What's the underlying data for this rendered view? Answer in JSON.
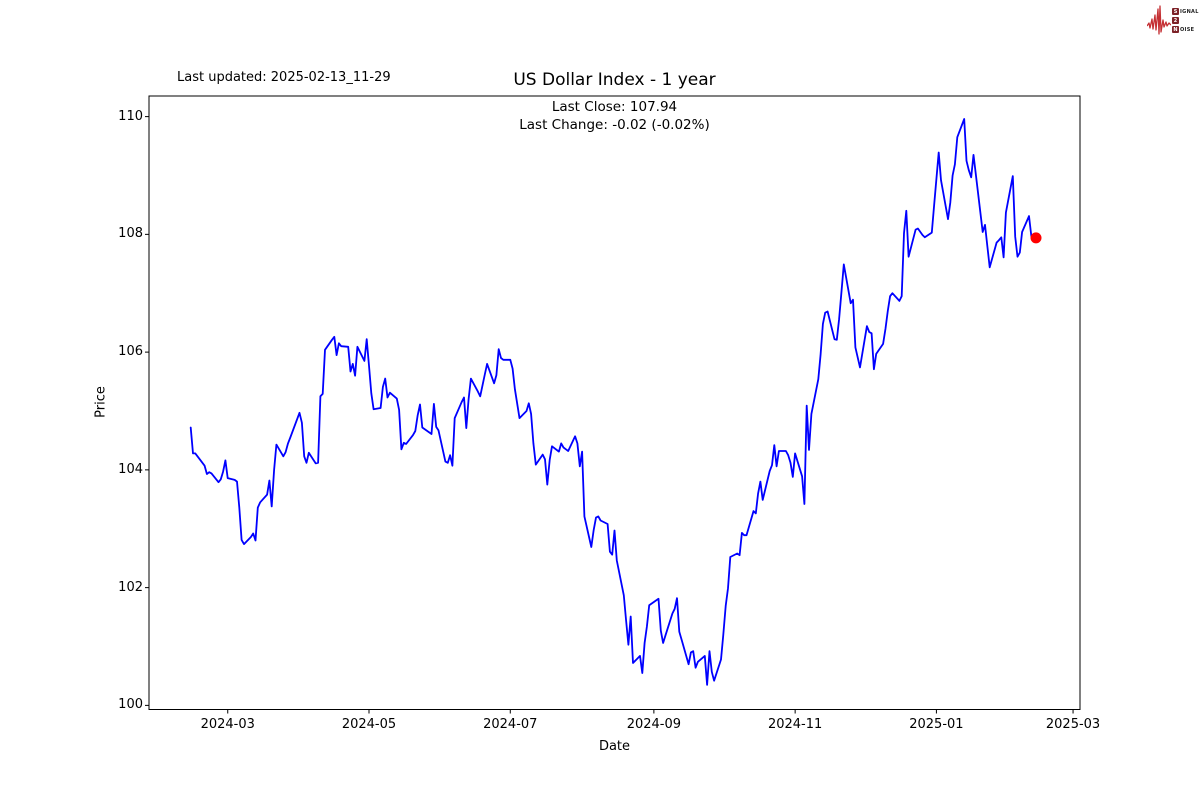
{
  "header": {
    "last_updated": "Last updated: 2025-02-13_11-29"
  },
  "logo": {
    "signal_boxed": "S",
    "signal_rest": "IGNAL",
    "two_boxed": "2",
    "noise_boxed": "N",
    "noise_rest": "OISE",
    "waveform_color": "#c53034",
    "box_color": "#7d2228"
  },
  "chart_data": {
    "type": "line",
    "title": "US Dollar Index - 1 year",
    "subtitle_line1": "Last Close: 107.94",
    "subtitle_line2": "Last Change: -0.02 (-0.02%)",
    "xlabel": "Date",
    "ylabel": "Price",
    "x_tick_labels": [
      "2024-03",
      "2024-05",
      "2024-07",
      "2024-09",
      "2024-11",
      "2025-01",
      "2025-03"
    ],
    "y_ticks": [
      100,
      102,
      104,
      106,
      108,
      110
    ],
    "ylim": [
      99.93,
      110.35
    ],
    "x_domain": [
      "2024-01-27",
      "2025-03-04"
    ],
    "grid": false,
    "line_color": "#0000ff",
    "marker_color": "#ff0000",
    "last_point": {
      "date": "2025-02-13",
      "value": 107.94
    },
    "series": [
      {
        "name": "US Dollar Index",
        "points": [
          [
            "2024-02-14",
            104.72
          ],
          [
            "2024-02-15",
            104.28
          ],
          [
            "2024-02-16",
            104.28
          ],
          [
            "2024-02-20",
            104.07
          ],
          [
            "2024-02-21",
            103.93
          ],
          [
            "2024-02-22",
            103.96
          ],
          [
            "2024-02-23",
            103.94
          ],
          [
            "2024-02-26",
            103.79
          ],
          [
            "2024-02-27",
            103.84
          ],
          [
            "2024-02-28",
            103.97
          ],
          [
            "2024-02-29",
            104.16
          ],
          [
            "2024-03-01",
            103.86
          ],
          [
            "2024-03-04",
            103.83
          ],
          [
            "2024-03-05",
            103.8
          ],
          [
            "2024-03-06",
            103.36
          ],
          [
            "2024-03-07",
            102.81
          ],
          [
            "2024-03-08",
            102.74
          ],
          [
            "2024-03-11",
            102.86
          ],
          [
            "2024-03-12",
            102.92
          ],
          [
            "2024-03-13",
            102.8
          ],
          [
            "2024-03-14",
            103.36
          ],
          [
            "2024-03-15",
            103.45
          ],
          [
            "2024-03-18",
            103.58
          ],
          [
            "2024-03-19",
            103.82
          ],
          [
            "2024-03-20",
            103.38
          ],
          [
            "2024-03-21",
            104.0
          ],
          [
            "2024-03-22",
            104.43
          ],
          [
            "2024-03-25",
            104.23
          ],
          [
            "2024-03-26",
            104.3
          ],
          [
            "2024-03-27",
            104.45
          ],
          [
            "2024-03-28",
            104.55
          ],
          [
            "2024-04-01",
            104.97
          ],
          [
            "2024-04-02",
            104.8
          ],
          [
            "2024-04-03",
            104.23
          ],
          [
            "2024-04-04",
            104.12
          ],
          [
            "2024-04-05",
            104.29
          ],
          [
            "2024-04-08",
            104.11
          ],
          [
            "2024-04-09",
            104.12
          ],
          [
            "2024-04-10",
            105.25
          ],
          [
            "2024-04-11",
            105.29
          ],
          [
            "2024-04-12",
            106.04
          ],
          [
            "2024-04-15",
            106.21
          ],
          [
            "2024-04-16",
            106.26
          ],
          [
            "2024-04-17",
            105.95
          ],
          [
            "2024-04-18",
            106.15
          ],
          [
            "2024-04-19",
            106.1
          ],
          [
            "2024-04-22",
            106.09
          ],
          [
            "2024-04-23",
            105.67
          ],
          [
            "2024-04-24",
            105.8
          ],
          [
            "2024-04-25",
            105.6
          ],
          [
            "2024-04-26",
            106.09
          ],
          [
            "2024-04-29",
            105.85
          ],
          [
            "2024-04-30",
            106.22
          ],
          [
            "2024-05-01",
            105.77
          ],
          [
            "2024-05-02",
            105.3
          ],
          [
            "2024-05-03",
            105.03
          ],
          [
            "2024-05-06",
            105.05
          ],
          [
            "2024-05-07",
            105.41
          ],
          [
            "2024-05-08",
            105.55
          ],
          [
            "2024-05-09",
            105.23
          ],
          [
            "2024-05-10",
            105.31
          ],
          [
            "2024-05-13",
            105.21
          ],
          [
            "2024-05-14",
            105.02
          ],
          [
            "2024-05-15",
            104.35
          ],
          [
            "2024-05-16",
            104.46
          ],
          [
            "2024-05-17",
            104.44
          ],
          [
            "2024-05-20",
            104.59
          ],
          [
            "2024-05-21",
            104.66
          ],
          [
            "2024-05-22",
            104.92
          ],
          [
            "2024-05-23",
            105.11
          ],
          [
            "2024-05-24",
            104.72
          ],
          [
            "2024-05-28",
            104.61
          ],
          [
            "2024-05-29",
            105.12
          ],
          [
            "2024-05-30",
            104.73
          ],
          [
            "2024-05-31",
            104.67
          ],
          [
            "2024-06-03",
            104.14
          ],
          [
            "2024-06-04",
            104.12
          ],
          [
            "2024-06-05",
            104.25
          ],
          [
            "2024-06-06",
            104.07
          ],
          [
            "2024-06-07",
            104.88
          ],
          [
            "2024-06-10",
            105.15
          ],
          [
            "2024-06-11",
            105.23
          ],
          [
            "2024-06-12",
            104.71
          ],
          [
            "2024-06-13",
            105.2
          ],
          [
            "2024-06-14",
            105.55
          ],
          [
            "2024-06-17",
            105.33
          ],
          [
            "2024-06-18",
            105.25
          ],
          [
            "2024-06-20",
            105.62
          ],
          [
            "2024-06-21",
            105.8
          ],
          [
            "2024-06-24",
            105.47
          ],
          [
            "2024-06-25",
            105.61
          ],
          [
            "2024-06-26",
            106.05
          ],
          [
            "2024-06-27",
            105.9
          ],
          [
            "2024-06-28",
            105.87
          ],
          [
            "2024-07-01",
            105.87
          ],
          [
            "2024-07-02",
            105.72
          ],
          [
            "2024-07-03",
            105.37
          ],
          [
            "2024-07-05",
            104.88
          ],
          [
            "2024-07-08",
            105.0
          ],
          [
            "2024-07-09",
            105.13
          ],
          [
            "2024-07-10",
            104.95
          ],
          [
            "2024-07-11",
            104.45
          ],
          [
            "2024-07-12",
            104.09
          ],
          [
            "2024-07-15",
            104.26
          ],
          [
            "2024-07-16",
            104.18
          ],
          [
            "2024-07-17",
            103.75
          ],
          [
            "2024-07-18",
            104.17
          ],
          [
            "2024-07-19",
            104.4
          ],
          [
            "2024-07-22",
            104.31
          ],
          [
            "2024-07-23",
            104.45
          ],
          [
            "2024-07-24",
            104.38
          ],
          [
            "2024-07-25",
            104.35
          ],
          [
            "2024-07-26",
            104.32
          ],
          [
            "2024-07-29",
            104.57
          ],
          [
            "2024-07-30",
            104.45
          ],
          [
            "2024-07-31",
            104.06
          ],
          [
            "2024-08-01",
            104.31
          ],
          [
            "2024-08-02",
            103.21
          ],
          [
            "2024-08-05",
            102.69
          ],
          [
            "2024-08-06",
            102.98
          ],
          [
            "2024-08-07",
            103.19
          ],
          [
            "2024-08-08",
            103.21
          ],
          [
            "2024-08-09",
            103.14
          ],
          [
            "2024-08-12",
            103.08
          ],
          [
            "2024-08-13",
            102.61
          ],
          [
            "2024-08-14",
            102.56
          ],
          [
            "2024-08-15",
            102.97
          ],
          [
            "2024-08-16",
            102.46
          ],
          [
            "2024-08-19",
            101.87
          ],
          [
            "2024-08-20",
            101.44
          ],
          [
            "2024-08-21",
            101.03
          ],
          [
            "2024-08-22",
            101.51
          ],
          [
            "2024-08-23",
            100.72
          ],
          [
            "2024-08-26",
            100.84
          ],
          [
            "2024-08-27",
            100.55
          ],
          [
            "2024-08-28",
            101.06
          ],
          [
            "2024-08-29",
            101.34
          ],
          [
            "2024-08-30",
            101.7
          ],
          [
            "2024-09-03",
            101.81
          ],
          [
            "2024-09-04",
            101.27
          ],
          [
            "2024-09-05",
            101.06
          ],
          [
            "2024-09-06",
            101.19
          ],
          [
            "2024-09-09",
            101.56
          ],
          [
            "2024-09-10",
            101.64
          ],
          [
            "2024-09-11",
            101.82
          ],
          [
            "2024-09-12",
            101.25
          ],
          [
            "2024-09-13",
            101.11
          ],
          [
            "2024-09-16",
            100.7
          ],
          [
            "2024-09-17",
            100.9
          ],
          [
            "2024-09-18",
            100.92
          ],
          [
            "2024-09-19",
            100.64
          ],
          [
            "2024-09-20",
            100.74
          ],
          [
            "2024-09-23",
            100.84
          ],
          [
            "2024-09-24",
            100.35
          ],
          [
            "2024-09-25",
            100.92
          ],
          [
            "2024-09-26",
            100.57
          ],
          [
            "2024-09-27",
            100.42
          ],
          [
            "2024-09-30",
            100.78
          ],
          [
            "2024-10-01",
            101.2
          ],
          [
            "2024-10-02",
            101.69
          ],
          [
            "2024-10-03",
            101.99
          ],
          [
            "2024-10-04",
            102.52
          ],
          [
            "2024-10-07",
            102.58
          ],
          [
            "2024-10-08",
            102.55
          ],
          [
            "2024-10-09",
            102.93
          ],
          [
            "2024-10-10",
            102.89
          ],
          [
            "2024-10-11",
            102.89
          ],
          [
            "2024-10-14",
            103.3
          ],
          [
            "2024-10-15",
            103.26
          ],
          [
            "2024-10-16",
            103.6
          ],
          [
            "2024-10-17",
            103.8
          ],
          [
            "2024-10-18",
            103.49
          ],
          [
            "2024-10-21",
            103.98
          ],
          [
            "2024-10-22",
            104.08
          ],
          [
            "2024-10-23",
            104.42
          ],
          [
            "2024-10-24",
            104.06
          ],
          [
            "2024-10-25",
            104.32
          ],
          [
            "2024-10-28",
            104.32
          ],
          [
            "2024-10-29",
            104.25
          ],
          [
            "2024-10-30",
            104.12
          ],
          [
            "2024-10-31",
            103.88
          ],
          [
            "2024-11-01",
            104.28
          ],
          [
            "2024-11-04",
            103.89
          ],
          [
            "2024-11-05",
            103.42
          ],
          [
            "2024-11-06",
            105.09
          ],
          [
            "2024-11-07",
            104.34
          ],
          [
            "2024-11-08",
            104.95
          ],
          [
            "2024-11-11",
            105.54
          ],
          [
            "2024-11-12",
            105.96
          ],
          [
            "2024-11-13",
            106.48
          ],
          [
            "2024-11-14",
            106.67
          ],
          [
            "2024-11-15",
            106.69
          ],
          [
            "2024-11-18",
            106.22
          ],
          [
            "2024-11-19",
            106.21
          ],
          [
            "2024-11-20",
            106.56
          ],
          [
            "2024-11-21",
            107.03
          ],
          [
            "2024-11-22",
            107.49
          ],
          [
            "2024-11-25",
            106.83
          ],
          [
            "2024-11-26",
            106.89
          ],
          [
            "2024-11-27",
            106.08
          ],
          [
            "2024-11-29",
            105.74
          ],
          [
            "2024-12-02",
            106.44
          ],
          [
            "2024-12-03",
            106.34
          ],
          [
            "2024-12-04",
            106.32
          ],
          [
            "2024-12-05",
            105.71
          ],
          [
            "2024-12-06",
            105.97
          ],
          [
            "2024-12-09",
            106.14
          ],
          [
            "2024-12-10",
            106.4
          ],
          [
            "2024-12-11",
            106.7
          ],
          [
            "2024-12-12",
            106.95
          ],
          [
            "2024-12-13",
            107.0
          ],
          [
            "2024-12-16",
            106.87
          ],
          [
            "2024-12-17",
            106.95
          ],
          [
            "2024-12-18",
            108.02
          ],
          [
            "2024-12-19",
            108.4
          ],
          [
            "2024-12-20",
            107.62
          ],
          [
            "2024-12-23",
            108.08
          ],
          [
            "2024-12-24",
            108.1
          ],
          [
            "2024-12-26",
            107.99
          ],
          [
            "2024-12-27",
            107.95
          ],
          [
            "2024-12-30",
            108.03
          ],
          [
            "2024-12-31",
            108.49
          ],
          [
            "2025-01-02",
            109.39
          ],
          [
            "2025-01-03",
            108.92
          ],
          [
            "2025-01-06",
            108.26
          ],
          [
            "2025-01-07",
            108.54
          ],
          [
            "2025-01-08",
            109.0
          ],
          [
            "2025-01-09",
            109.19
          ],
          [
            "2025-01-10",
            109.65
          ],
          [
            "2025-01-13",
            109.96
          ],
          [
            "2025-01-14",
            109.25
          ],
          [
            "2025-01-15",
            109.09
          ],
          [
            "2025-01-16",
            108.97
          ],
          [
            "2025-01-17",
            109.35
          ],
          [
            "2025-01-21",
            108.04
          ],
          [
            "2025-01-22",
            108.16
          ],
          [
            "2025-01-23",
            107.79
          ],
          [
            "2025-01-24",
            107.44
          ],
          [
            "2025-01-27",
            107.86
          ],
          [
            "2025-01-28",
            107.9
          ],
          [
            "2025-01-29",
            107.95
          ],
          [
            "2025-01-30",
            107.61
          ],
          [
            "2025-01-31",
            108.37
          ],
          [
            "2025-02-03",
            108.99
          ],
          [
            "2025-02-04",
            107.96
          ],
          [
            "2025-02-05",
            107.62
          ],
          [
            "2025-02-06",
            107.69
          ],
          [
            "2025-02-07",
            108.04
          ],
          [
            "2025-02-10",
            108.31
          ],
          [
            "2025-02-11",
            107.96
          ],
          [
            "2025-02-12",
            107.96
          ],
          [
            "2025-02-13",
            107.94
          ]
        ]
      }
    ]
  }
}
